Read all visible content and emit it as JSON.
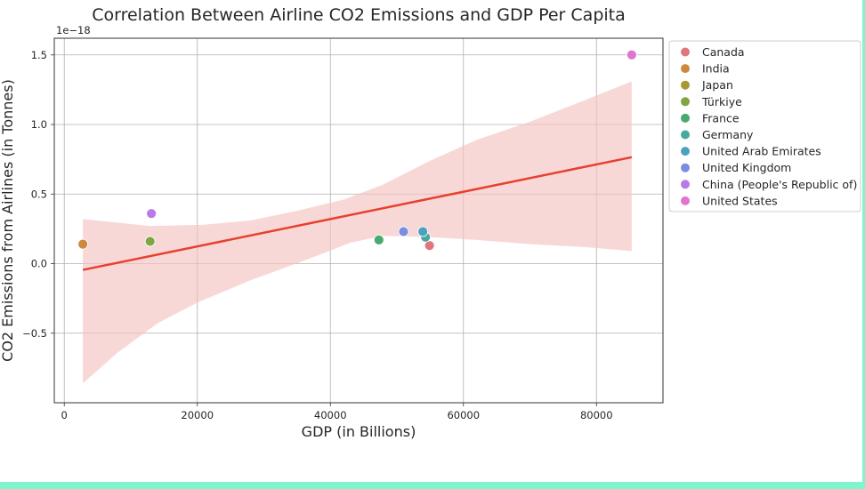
{
  "chart_data": {
    "type": "scatter",
    "title": "Correlation Between Airline CO2 Emissions and GDP Per Capita",
    "xlabel": "GDP (in Billions)",
    "ylabel": "CO2 Emissions from Airlines (in Tonnes)",
    "y_offset_label": "1e−18",
    "xlim": [
      -1500,
      90000
    ],
    "ylim": [
      -1.0,
      1.62
    ],
    "xticks": [
      0,
      20000,
      40000,
      60000,
      80000
    ],
    "xtick_labels": [
      "0",
      "20000",
      "40000",
      "60000",
      "80000"
    ],
    "yticks": [
      -0.5,
      0.0,
      0.5,
      1.0,
      1.5
    ],
    "ytick_labels": [
      "−0.5",
      "0.0",
      "0.5",
      "1.0",
      "1.5"
    ],
    "grid": true,
    "legend_position": "outside-right",
    "series": [
      {
        "name": "Canada",
        "color": "#e1767e",
        "x": 54900,
        "y": 0.13
      },
      {
        "name": "India",
        "color": "#cd8a3d",
        "x": 2800,
        "y": 0.14
      },
      {
        "name": "Japan",
        "color": "#a89834",
        "x": 12900,
        "y": 0.16
      },
      {
        "name": "Türkiye",
        "color": "#7fa642",
        "x": 12900,
        "y": 0.16
      },
      {
        "name": "France",
        "color": "#4aa96f",
        "x": 47300,
        "y": 0.17
      },
      {
        "name": "Germany",
        "color": "#47a8a0",
        "x": 54300,
        "y": 0.19
      },
      {
        "name": "United Arab Emirates",
        "color": "#4aa1c0",
        "x": 53900,
        "y": 0.23
      },
      {
        "name": "United Kingdom",
        "color": "#7a8ee0",
        "x": 51000,
        "y": 0.23
      },
      {
        "name": "China (People's Republic of)",
        "color": "#b979e6",
        "x": 13100,
        "y": 0.36
      },
      {
        "name": "United States",
        "color": "#e174cf",
        "x": 85300,
        "y": 1.5
      }
    ],
    "regression": {
      "color": "#e8402f",
      "ci_color": "#f4c3c0",
      "line": [
        [
          2800,
          -0.045
        ],
        [
          85300,
          0.765
        ]
      ],
      "ci_upper": [
        [
          2800,
          0.32
        ],
        [
          7000,
          0.3
        ],
        [
          13000,
          0.27
        ],
        [
          21000,
          0.28
        ],
        [
          28000,
          0.31
        ],
        [
          35000,
          0.38
        ],
        [
          42000,
          0.46
        ],
        [
          48000,
          0.57
        ],
        [
          55000,
          0.74
        ],
        [
          62000,
          0.89
        ],
        [
          70000,
          1.02
        ],
        [
          78000,
          1.17
        ],
        [
          85300,
          1.31
        ]
      ],
      "ci_lower": [
        [
          2800,
          -0.86
        ],
        [
          8000,
          -0.64
        ],
        [
          14000,
          -0.43
        ],
        [
          20000,
          -0.28
        ],
        [
          28000,
          -0.12
        ],
        [
          36000,
          0.02
        ],
        [
          43000,
          0.15
        ],
        [
          48000,
          0.2
        ],
        [
          55000,
          0.19
        ],
        [
          62000,
          0.17
        ],
        [
          70000,
          0.14
        ],
        [
          78000,
          0.12
        ],
        [
          85300,
          0.09
        ]
      ]
    }
  }
}
